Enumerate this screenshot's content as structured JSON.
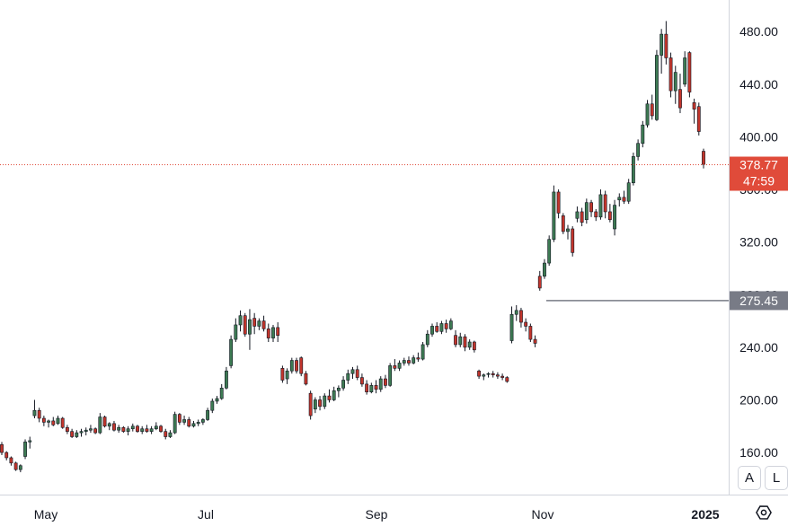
{
  "chart_data": {
    "type": "candlestick",
    "y_ticks": [
      "160.00",
      "200.00",
      "240.00",
      "280.00",
      "320.00",
      "360.00",
      "400.00",
      "440.00",
      "480.00"
    ],
    "x_labels": [
      "May",
      "Jul",
      "Sep",
      "Nov",
      "2025"
    ],
    "ylim": [
      128,
      504
    ],
    "current_price": {
      "label": "378.77",
      "value": 378.77,
      "countdown": "47:59",
      "color": "#e04b3a"
    },
    "horizontal_line": {
      "label": "275.45",
      "value": 275.45,
      "color": "#787b86"
    },
    "up_color": "#3d7a53",
    "down_color": "#c2352c",
    "grid": false,
    "ohlc": [
      [
        166,
        168,
        158,
        160
      ],
      [
        160,
        161,
        154,
        156
      ],
      [
        156,
        157,
        150,
        152
      ],
      [
        152,
        153,
        146,
        147
      ],
      [
        147,
        151,
        145,
        150
      ],
      [
        157,
        170,
        155,
        168
      ],
      [
        168,
        172,
        163,
        169
      ],
      [
        188,
        200,
        186,
        192
      ],
      [
        192,
        194,
        183,
        186
      ],
      [
        186,
        188,
        180,
        183
      ],
      [
        183,
        185,
        179,
        184
      ],
      [
        184,
        187,
        180,
        181
      ],
      [
        182,
        188,
        181,
        186
      ],
      [
        186,
        187,
        178,
        179
      ],
      [
        179,
        181,
        174,
        176
      ],
      [
        176,
        178,
        171,
        172
      ],
      [
        172,
        177,
        171,
        175
      ],
      [
        175,
        178,
        172,
        176
      ],
      [
        176,
        179,
        173,
        177
      ],
      [
        177,
        181,
        175,
        178
      ],
      [
        178,
        179,
        174,
        175
      ],
      [
        175,
        190,
        174,
        187
      ],
      [
        187,
        188,
        179,
        180
      ],
      [
        180,
        183,
        177,
        182
      ],
      [
        182,
        184,
        176,
        177
      ],
      [
        177,
        181,
        175,
        179
      ],
      [
        179,
        180,
        175,
        176
      ],
      [
        176,
        180,
        173,
        178
      ],
      [
        178,
        182,
        176,
        180
      ],
      [
        180,
        181,
        175,
        176
      ],
      [
        176,
        180,
        174,
        178
      ],
      [
        178,
        181,
        175,
        176
      ],
      [
        176,
        180,
        174,
        178
      ],
      [
        178,
        183,
        177,
        180
      ],
      [
        180,
        181,
        175,
        176
      ],
      [
        176,
        178,
        170,
        172
      ],
      [
        172,
        177,
        171,
        175
      ],
      [
        175,
        191,
        174,
        189
      ],
      [
        189,
        190,
        181,
        183
      ],
      [
        183,
        188,
        181,
        185
      ],
      [
        185,
        187,
        179,
        180
      ],
      [
        180,
        184,
        179,
        182
      ],
      [
        182,
        185,
        180,
        183
      ],
      [
        183,
        186,
        181,
        185
      ],
      [
        185,
        194,
        184,
        192
      ],
      [
        192,
        201,
        190,
        199
      ],
      [
        199,
        203,
        197,
        201
      ],
      [
        201,
        212,
        200,
        209
      ],
      [
        209,
        225,
        208,
        222
      ],
      [
        226,
        249,
        224,
        246
      ],
      [
        246,
        262,
        244,
        257
      ],
      [
        257,
        268,
        252,
        264
      ],
      [
        264,
        266,
        248,
        250
      ],
      [
        250,
        269,
        238,
        261
      ],
      [
        262,
        266,
        250,
        256
      ],
      [
        256,
        262,
        253,
        260
      ],
      [
        260,
        264,
        252,
        254
      ],
      [
        254,
        258,
        244,
        247
      ],
      [
        247,
        257,
        244,
        255
      ],
      [
        255,
        259,
        244,
        249
      ],
      [
        224,
        226,
        213,
        215
      ],
      [
        216,
        224,
        212,
        222
      ],
      [
        222,
        232,
        220,
        230
      ],
      [
        230,
        232,
        220,
        222
      ],
      [
        232,
        233,
        218,
        220
      ],
      [
        220,
        222,
        211,
        212
      ],
      [
        205,
        207,
        185,
        188
      ],
      [
        193,
        202,
        190,
        200
      ],
      [
        200,
        203,
        192,
        195
      ],
      [
        195,
        205,
        193,
        203
      ],
      [
        203,
        208,
        198,
        200
      ],
      [
        200,
        210,
        199,
        207
      ],
      [
        207,
        211,
        202,
        209
      ],
      [
        209,
        218,
        207,
        215
      ],
      [
        215,
        223,
        212,
        220
      ],
      [
        220,
        225,
        216,
        223
      ],
      [
        223,
        226,
        215,
        217
      ],
      [
        217,
        220,
        210,
        212
      ],
      [
        212,
        215,
        204,
        206
      ],
      [
        206,
        213,
        205,
        211
      ],
      [
        211,
        215,
        205,
        208
      ],
      [
        208,
        218,
        206,
        216
      ],
      [
        216,
        219,
        209,
        211
      ],
      [
        211,
        228,
        210,
        226
      ],
      [
        226,
        231,
        222,
        224
      ],
      [
        224,
        230,
        222,
        228
      ],
      [
        228,
        232,
        226,
        230
      ],
      [
        230,
        233,
        226,
        228
      ],
      [
        228,
        234,
        227,
        232
      ],
      [
        232,
        236,
        229,
        231
      ],
      [
        231,
        244,
        230,
        242
      ],
      [
        242,
        253,
        240,
        250
      ],
      [
        250,
        258,
        248,
        256
      ],
      [
        256,
        259,
        251,
        252
      ],
      [
        252,
        260,
        250,
        258
      ],
      [
        258,
        261,
        251,
        254
      ],
      [
        254,
        262,
        253,
        260
      ],
      [
        249,
        253,
        240,
        242
      ],
      [
        242,
        251,
        240,
        248
      ],
      [
        248,
        250,
        237,
        240
      ],
      [
        240,
        246,
        238,
        244
      ],
      [
        244,
        245,
        236,
        238
      ],
      [
        222,
        223,
        216,
        218
      ],
      [
        218,
        220,
        215,
        219
      ],
      [
        220,
        221,
        217,
        220
      ],
      [
        220,
        222,
        217,
        219
      ],
      [
        219,
        221,
        216,
        218
      ],
      [
        218,
        220,
        215,
        217
      ],
      [
        217,
        218,
        213,
        214
      ],
      [
        245,
        271,
        243,
        265
      ],
      [
        265,
        272,
        260,
        268
      ],
      [
        268,
        270,
        255,
        259
      ],
      [
        259,
        262,
        252,
        256
      ],
      [
        256,
        258,
        244,
        246
      ],
      [
        246,
        249,
        240,
        243
      ],
      [
        294,
        298,
        283,
        285
      ],
      [
        294,
        307,
        292,
        304
      ],
      [
        304,
        325,
        302,
        322
      ],
      [
        322,
        363,
        320,
        358
      ],
      [
        358,
        360,
        338,
        342
      ],
      [
        340,
        342,
        326,
        328
      ],
      [
        328,
        333,
        322,
        330
      ],
      [
        330,
        332,
        309,
        312
      ],
      [
        338,
        347,
        335,
        343
      ],
      [
        343,
        346,
        332,
        335
      ],
      [
        337,
        353,
        334,
        350
      ],
      [
        350,
        352,
        339,
        343
      ],
      [
        343,
        345,
        336,
        339
      ],
      [
        339,
        360,
        337,
        356
      ],
      [
        356,
        359,
        338,
        343
      ],
      [
        343,
        349,
        335,
        337
      ],
      [
        330,
        352,
        325,
        348
      ],
      [
        352,
        357,
        347,
        354
      ],
      [
        354,
        359,
        349,
        351
      ],
      [
        351,
        368,
        349,
        365
      ],
      [
        365,
        388,
        363,
        385
      ],
      [
        385,
        398,
        382,
        395
      ],
      [
        395,
        412,
        392,
        409
      ],
      [
        409,
        428,
        407,
        425
      ],
      [
        425,
        432,
        413,
        416
      ],
      [
        413,
        466,
        412,
        462
      ],
      [
        462,
        482,
        448,
        478
      ],
      [
        478,
        488,
        455,
        460
      ],
      [
        460,
        464,
        430,
        435
      ],
      [
        435,
        454,
        425,
        449
      ],
      [
        436,
        448,
        418,
        422
      ],
      [
        440,
        465,
        438,
        460
      ],
      [
        464,
        465,
        430,
        434
      ],
      [
        426,
        429,
        410,
        421
      ],
      [
        423,
        426,
        401,
        404
      ],
      [
        389,
        391,
        376,
        379
      ]
    ]
  }
}
